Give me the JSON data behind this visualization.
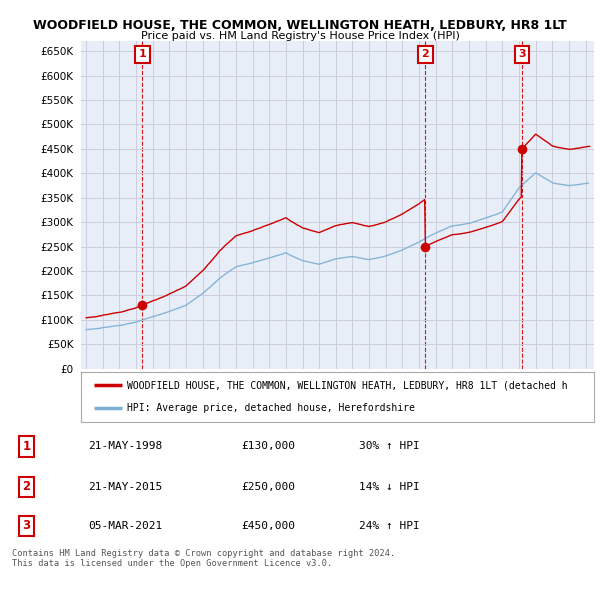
{
  "title": "WOODFIELD HOUSE, THE COMMON, WELLINGTON HEATH, LEDBURY, HR8 1LT",
  "subtitle": "Price paid vs. HM Land Registry's House Price Index (HPI)",
  "ylim": [
    0,
    670000
  ],
  "yticks": [
    0,
    50000,
    100000,
    150000,
    200000,
    250000,
    300000,
    350000,
    400000,
    450000,
    500000,
    550000,
    600000,
    650000
  ],
  "xlim_left": 1994.7,
  "xlim_right": 2025.5,
  "sales": [
    {
      "date": 1998.38,
      "price": 130000,
      "label": "1"
    },
    {
      "date": 2015.38,
      "price": 250000,
      "label": "2"
    },
    {
      "date": 2021.17,
      "price": 450000,
      "label": "3"
    }
  ],
  "sale_vline_color": "#cc0000",
  "sale_dot_color": "#cc0000",
  "hpi_line_color": "#7bafd4",
  "property_line_color": "#cc0000",
  "legend_property": "WOODFIELD HOUSE, THE COMMON, WELLINGTON HEATH, LEDBURY, HR8 1LT (detached h",
  "legend_hpi": "HPI: Average price, detached house, Herefordshire",
  "table_entries": [
    {
      "num": "1",
      "date": "21-MAY-1998",
      "price": "£130,000",
      "hpi": "30% ↑ HPI"
    },
    {
      "num": "2",
      "date": "21-MAY-2015",
      "price": "£250,000",
      "hpi": "14% ↓ HPI"
    },
    {
      "num": "3",
      "date": "05-MAR-2021",
      "price": "£450,000",
      "hpi": "24% ↑ HPI"
    }
  ],
  "footer": "Contains HM Land Registry data © Crown copyright and database right 2024.\nThis data is licensed under the Open Government Licence v3.0.",
  "bg_color": "#ffffff",
  "grid_color": "#ccccdd",
  "plot_bg_color": "#e8eef8"
}
